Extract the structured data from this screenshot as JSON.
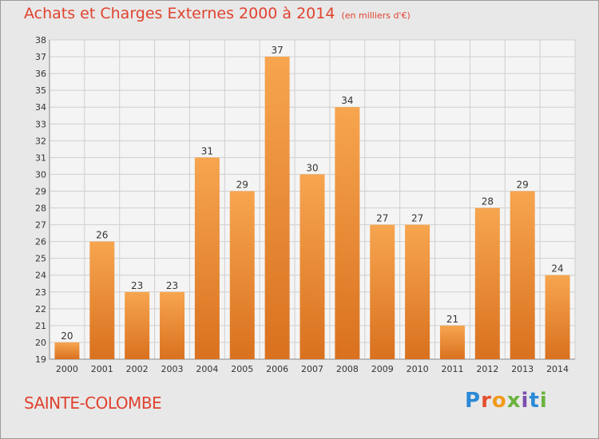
{
  "title": "Achats et Charges Externes 2000 à 2014",
  "unit": "(en milliers d'€)",
  "town": "SAINTE-COLOMBE",
  "brand": {
    "text": "Proxiti",
    "letters": [
      "P",
      "r",
      "o",
      "x",
      "i",
      "t",
      "i"
    ]
  },
  "colors": {
    "title": "#e0422f",
    "bar_light": "#f7a54f",
    "bar_dark": "#d9711f",
    "grid": "#cfcfcf",
    "background": "#e8e8e8"
  },
  "chart_data": {
    "type": "bar",
    "title": "Achats et Charges Externes 2000 à 2014",
    "subtitle": "(en milliers d'€)",
    "xlabel": "",
    "ylabel": "",
    "categories": [
      "2000",
      "2001",
      "2002",
      "2003",
      "2004",
      "2005",
      "2006",
      "2007",
      "2008",
      "2009",
      "2010",
      "2011",
      "2012",
      "2013",
      "2014"
    ],
    "values": [
      20,
      26,
      23,
      23,
      31,
      29,
      37,
      30,
      34,
      27,
      27,
      21,
      28,
      29,
      24
    ],
    "ylim": [
      19,
      38
    ],
    "yticks": [
      19,
      20,
      21,
      22,
      23,
      24,
      25,
      26,
      27,
      28,
      29,
      30,
      31,
      32,
      33,
      34,
      35,
      36,
      37,
      38
    ],
    "grid": true,
    "data_labels": true
  }
}
